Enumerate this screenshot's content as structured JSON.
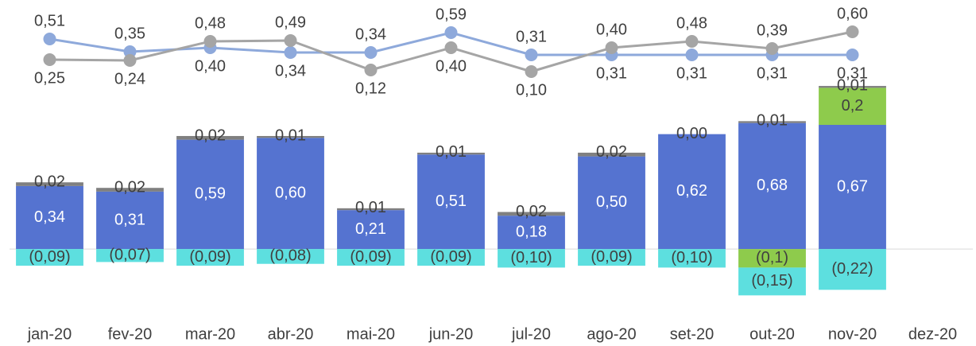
{
  "chart_data": {
    "type": "bar",
    "categories": [
      "jan-20",
      "fev-20",
      "mar-20",
      "abr-20",
      "mai-20",
      "jun-20",
      "jul-20",
      "ago-20",
      "set-20",
      "out-20",
      "nov-20",
      "dez-20"
    ],
    "ylim": [
      -0.3,
      0.7
    ],
    "y2lim": [
      0,
      0.7
    ],
    "series": [
      {
        "color": "#5573d0",
        "values": [
          0.34,
          0.31,
          0.59,
          0.6,
          0.21,
          0.51,
          0.18,
          0.5,
          0.62,
          0.68,
          0.67,
          null
        ],
        "value_labels": [
          "0,34",
          "0,31",
          "0,59",
          "0,60",
          "0,21",
          "0,51",
          "0,18",
          "0,50",
          "0,62",
          "0,68",
          "0,67",
          null
        ]
      },
      {
        "color": "#8ecb4c",
        "values": [
          null,
          null,
          null,
          null,
          null,
          null,
          null,
          null,
          null,
          -0.1,
          0.2,
          null
        ],
        "value_labels": [
          null,
          null,
          null,
          null,
          null,
          null,
          null,
          null,
          null,
          "(0,1)",
          "0,2",
          null
        ]
      },
      {
        "color": "#808080",
        "values": [
          0.02,
          0.02,
          0.02,
          0.01,
          0.01,
          0.01,
          0.02,
          0.02,
          0.0,
          0.01,
          0.01,
          null
        ],
        "value_labels": [
          "0,02",
          "0,02",
          "0,02",
          "0,01",
          "0,01",
          "0,01",
          "0,02",
          "0,02",
          "0,00",
          "0,01",
          "0,01",
          null
        ]
      },
      {
        "color": "#5ddfdf",
        "values": [
          -0.09,
          -0.07,
          -0.09,
          -0.08,
          -0.09,
          -0.09,
          -0.1,
          -0.09,
          -0.1,
          -0.15,
          -0.22,
          null
        ],
        "value_labels": [
          "(0,09)",
          "(0,07)",
          "(0,09)",
          "(0,08)",
          "(0,09)",
          "(0,09)",
          "(0,10)",
          "(0,09)",
          "(0,10)",
          "(0,15)",
          "(0,22)",
          null
        ]
      },
      {
        "type": "line",
        "axis": "y2",
        "color": "#8ea9db",
        "values": [
          0.51,
          0.35,
          0.4,
          0.34,
          0.34,
          0.59,
          0.31,
          0.31,
          0.31,
          0.31,
          0.31,
          null
        ],
        "value_labels": [
          "0,51",
          "0,35",
          "0,40",
          "0,34",
          "0,34",
          "0,59",
          "0,31",
          "0,31",
          "0,31",
          "0,31",
          "0,31",
          null
        ]
      },
      {
        "type": "line",
        "axis": "y2",
        "color": "#a5a5a5",
        "values": [
          0.25,
          0.24,
          0.48,
          0.49,
          0.12,
          0.4,
          0.1,
          0.4,
          0.48,
          0.39,
          0.6,
          null
        ],
        "value_labels": [
          "0,25",
          "0,24",
          "0,48",
          "0,49",
          "0,12",
          "0,40",
          "0,10",
          "0,40",
          "0,48",
          "0,39",
          "0,60",
          null
        ]
      }
    ]
  }
}
